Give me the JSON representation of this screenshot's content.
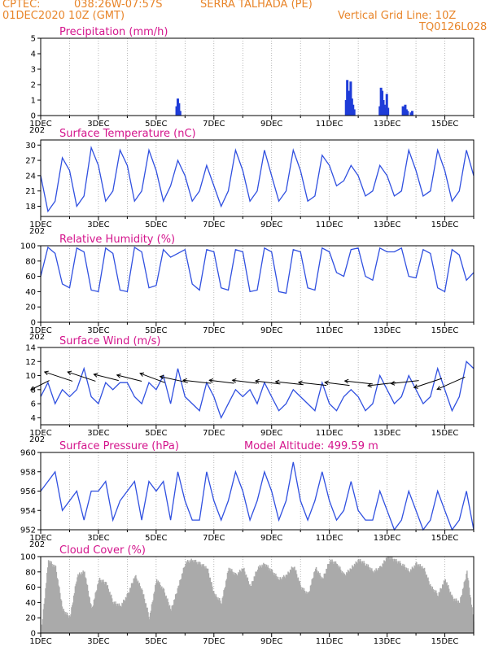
{
  "header": {
    "source": "CPTEC:",
    "coords": "038:26W-07:57S",
    "station": "SERRA TALHADA (PE)",
    "date": "01DEC2020 10Z (GMT)",
    "grid_line": "Vertical Grid Line: 10Z",
    "model": "TQ0126L028"
  },
  "x_axis": {
    "labels": [
      "1DEC",
      "3DEC",
      "5DEC",
      "7DEC",
      "9DEC",
      "11DEC",
      "13DEC",
      "15DEC"
    ],
    "label_days": [
      0,
      2,
      4,
      6,
      8,
      10,
      12,
      14
    ],
    "year_stub": "202",
    "days_span": 15
  },
  "colors": {
    "line": "#3050e0",
    "bars": "#1e3cd8",
    "cloud": "#aaaaaa",
    "title": "#d4148c",
    "header": "#e8852a",
    "grid": "#888888"
  },
  "chart_data": [
    {
      "id": "precip",
      "type": "bar",
      "title": "Precipitation (mm/h)",
      "ylim": [
        0,
        5
      ],
      "yticks": [
        0,
        1,
        2,
        3,
        4,
        5
      ],
      "points": [
        [
          4.71,
          0.6
        ],
        [
          4.75,
          1.1
        ],
        [
          4.79,
          0.8
        ],
        [
          4.83,
          0.3
        ],
        [
          10.58,
          1.0
        ],
        [
          10.62,
          2.3
        ],
        [
          10.66,
          1.6
        ],
        [
          10.7,
          0.5
        ],
        [
          10.74,
          2.2
        ],
        [
          10.78,
          1.1
        ],
        [
          10.82,
          0.7
        ],
        [
          10.86,
          0.4
        ],
        [
          11.75,
          0.6
        ],
        [
          11.79,
          1.8
        ],
        [
          11.83,
          1.6
        ],
        [
          11.87,
          1.0
        ],
        [
          11.91,
          0.7
        ],
        [
          11.95,
          0.5
        ],
        [
          11.99,
          1.4
        ],
        [
          12.03,
          0.5
        ],
        [
          12.55,
          0.6
        ],
        [
          12.59,
          0.4
        ],
        [
          12.63,
          0.7
        ],
        [
          12.67,
          0.4
        ],
        [
          12.71,
          0.3
        ],
        [
          12.83,
          0.2
        ],
        [
          12.87,
          0.3
        ]
      ]
    },
    {
      "id": "temp",
      "type": "line",
      "title": "Surface Temperature (nC)",
      "ylim": [
        16,
        31
      ],
      "yticks": [
        18,
        21,
        24,
        27,
        30
      ],
      "x": [
        0,
        0.25,
        0.5,
        0.75,
        1,
        1.25,
        1.5,
        1.75,
        2,
        2.25,
        2.5,
        2.75,
        3,
        3.25,
        3.5,
        3.75,
        4,
        4.25,
        4.5,
        4.75,
        5,
        5.25,
        5.5,
        5.75,
        6,
        6.25,
        6.5,
        6.75,
        7,
        7.25,
        7.5,
        7.75,
        8,
        8.25,
        8.5,
        8.75,
        9,
        9.25,
        9.5,
        9.75,
        10,
        10.25,
        10.5,
        10.75,
        11,
        11.25,
        11.5,
        11.75,
        12,
        12.25,
        12.5,
        12.75,
        13,
        13.25,
        13.5,
        13.75,
        14,
        14.25,
        14.5,
        14.75,
        15
      ],
      "y": [
        24,
        17,
        19,
        27.5,
        25,
        18,
        20,
        29.5,
        26,
        19,
        21,
        29,
        26,
        19,
        21,
        29,
        25,
        19,
        22,
        27,
        24,
        19,
        21,
        26,
        22,
        18,
        21,
        29,
        25,
        19,
        21,
        29,
        24,
        19,
        21,
        29,
        25,
        19,
        20,
        28,
        26,
        22,
        23,
        26,
        24,
        20,
        21,
        26,
        24,
        20,
        21,
        29,
        25,
        20,
        21,
        29,
        25,
        19,
        21,
        29,
        24
      ]
    },
    {
      "id": "rh",
      "type": "line",
      "title": "Relative Humidity (%)",
      "ylim": [
        0,
        100
      ],
      "yticks": [
        0,
        20,
        40,
        60,
        80,
        100
      ],
      "x": [
        0,
        0.25,
        0.5,
        0.75,
        1,
        1.25,
        1.5,
        1.75,
        2,
        2.25,
        2.5,
        2.75,
        3,
        3.25,
        3.5,
        3.75,
        4,
        4.25,
        4.5,
        4.75,
        5,
        5.25,
        5.5,
        5.75,
        6,
        6.25,
        6.5,
        6.75,
        7,
        7.25,
        7.5,
        7.75,
        8,
        8.25,
        8.5,
        8.75,
        9,
        9.25,
        9.5,
        9.75,
        10,
        10.25,
        10.5,
        10.75,
        11,
        11.25,
        11.5,
        11.75,
        12,
        12.25,
        12.5,
        12.75,
        13,
        13.25,
        13.5,
        13.75,
        14,
        14.25,
        14.5,
        14.75,
        15
      ],
      "y": [
        60,
        98,
        90,
        50,
        45,
        97,
        92,
        42,
        40,
        97,
        90,
        42,
        40,
        98,
        92,
        45,
        48,
        95,
        85,
        90,
        95,
        50,
        42,
        95,
        92,
        45,
        42,
        95,
        92,
        40,
        42,
        97,
        92,
        40,
        38,
        95,
        92,
        45,
        42,
        97,
        92,
        65,
        60,
        95,
        97,
        60,
        55,
        97,
        92,
        92,
        97,
        60,
        58,
        95,
        90,
        45,
        40,
        95,
        88,
        55,
        65
      ]
    },
    {
      "id": "wind",
      "type": "line",
      "title": "Surface Wind (m/s)",
      "ylim": [
        3,
        14
      ],
      "yticks": [
        4,
        6,
        8,
        10,
        12,
        14
      ],
      "x": [
        0,
        0.25,
        0.5,
        0.75,
        1,
        1.25,
        1.5,
        1.75,
        2,
        2.25,
        2.5,
        2.75,
        3,
        3.25,
        3.5,
        3.75,
        4,
        4.25,
        4.5,
        4.75,
        5,
        5.25,
        5.5,
        5.75,
        6,
        6.25,
        6.5,
        6.75,
        7,
        7.25,
        7.5,
        7.75,
        8,
        8.25,
        8.5,
        8.75,
        9,
        9.25,
        9.5,
        9.75,
        10,
        10.25,
        10.5,
        10.75,
        11,
        11.25,
        11.5,
        11.75,
        12,
        12.25,
        12.5,
        12.75,
        13,
        13.25,
        13.5,
        13.75,
        14,
        14.25,
        14.5,
        14.75,
        15
      ],
      "y": [
        7,
        9,
        6,
        8,
        7,
        8,
        11,
        7,
        6,
        9,
        8,
        9,
        9,
        7,
        6,
        9,
        8,
        10,
        6,
        11,
        7,
        6,
        5,
        9,
        7,
        4,
        6,
        8,
        7,
        8,
        6,
        9,
        7,
        5,
        6,
        8,
        7,
        6,
        5,
        9,
        6,
        5,
        7,
        8,
        7,
        5,
        6,
        10,
        8,
        6,
        7,
        10,
        8,
        6,
        7,
        11,
        8,
        5,
        7,
        12,
        11
      ],
      "arrows_x": [
        0.3,
        1.1,
        1.9,
        2.7,
        3.5,
        4.3,
        5.1,
        5.9,
        6.7,
        7.5,
        8.3,
        9.1,
        9.9,
        10.7,
        11.5,
        12.3,
        13.1,
        13.9,
        14.7
      ],
      "arrows_y": [
        9.3,
        9.2,
        9.2,
        9.3,
        9.2,
        9.0,
        9.0,
        8.9,
        8.9,
        8.9,
        8.8,
        8.7,
        8.6,
        8.6,
        8.8,
        9.0,
        9.3,
        9.6,
        9.8
      ],
      "arrows_u": [
        -0.6,
        -0.9,
        -0.9,
        -0.8,
        -0.8,
        -0.8,
        -0.9,
        -0.9,
        -0.8,
        -0.8,
        -0.8,
        -0.9,
        -0.9,
        -0.8,
        -0.9,
        -0.9,
        -0.9,
        -0.9,
        -0.9
      ],
      "arrows_v": [
        -0.3,
        0.3,
        0.3,
        0.2,
        0.2,
        0.3,
        0.2,
        0.1,
        0.1,
        0.1,
        0.1,
        0.1,
        0.1,
        0.1,
        0.1,
        -0.1,
        -0.1,
        -0.3,
        -0.4
      ]
    },
    {
      "id": "pressure",
      "type": "line",
      "title": "Surface Pressure (hPa)",
      "extra": "Model Altitude: 499.59 m",
      "ylim": [
        952,
        960
      ],
      "yticks": [
        952,
        954,
        956,
        958,
        960
      ],
      "x": [
        0,
        0.25,
        0.5,
        0.75,
        1,
        1.25,
        1.5,
        1.75,
        2,
        2.25,
        2.5,
        2.75,
        3,
        3.25,
        3.5,
        3.75,
        4,
        4.25,
        4.5,
        4.75,
        5,
        5.25,
        5.5,
        5.75,
        6,
        6.25,
        6.5,
        6.75,
        7,
        7.25,
        7.5,
        7.75,
        8,
        8.25,
        8.5,
        8.75,
        9,
        9.25,
        9.5,
        9.75,
        10,
        10.25,
        10.5,
        10.75,
        11,
        11.25,
        11.5,
        11.75,
        12,
        12.25,
        12.5,
        12.75,
        13,
        13.25,
        13.5,
        13.75,
        14,
        14.25,
        14.5,
        14.75,
        15
      ],
      "y": [
        956,
        957,
        958,
        954,
        955,
        956,
        953,
        956,
        956,
        957,
        953,
        955,
        956,
        957,
        953,
        957,
        956,
        957,
        953,
        958,
        955,
        953,
        953,
        958,
        955,
        953,
        955,
        958,
        956,
        953,
        955,
        958,
        956,
        953,
        955,
        959,
        955,
        953,
        955,
        958,
        955,
        953,
        954,
        957,
        954,
        953,
        953,
        956,
        954,
        952,
        953,
        956,
        954,
        952,
        953,
        956,
        954,
        952,
        953,
        956,
        952
      ]
    },
    {
      "id": "cloud",
      "type": "area",
      "title": "Cloud Cover (%)",
      "ylim": [
        0,
        100
      ],
      "yticks": [
        0,
        20,
        40,
        60,
        80,
        100
      ],
      "x": [
        0,
        0.25,
        0.5,
        0.75,
        1,
        1.25,
        1.5,
        1.75,
        2,
        2.25,
        2.5,
        2.75,
        3,
        3.25,
        3.5,
        3.75,
        4,
        4.25,
        4.5,
        4.75,
        5,
        5.25,
        5.5,
        5.75,
        6,
        6.25,
        6.5,
        6.75,
        7,
        7.25,
        7.5,
        7.75,
        8,
        8.25,
        8.5,
        8.75,
        9,
        9.25,
        9.5,
        9.75,
        10,
        10.25,
        10.5,
        10.75,
        11,
        11.25,
        11.5,
        11.75,
        12,
        12.25,
        12.5,
        12.75,
        13,
        13.25,
        13.5,
        13.75,
        14,
        14.25,
        14.5,
        14.75,
        15
      ],
      "y": [
        0,
        95,
        85,
        30,
        20,
        75,
        80,
        30,
        70,
        65,
        40,
        35,
        50,
        75,
        55,
        20,
        70,
        55,
        30,
        60,
        92,
        95,
        90,
        85,
        50,
        40,
        85,
        75,
        85,
        60,
        85,
        90,
        80,
        70,
        75,
        88,
        60,
        50,
        85,
        70,
        95,
        90,
        75,
        85,
        95,
        90,
        80,
        85,
        100,
        95,
        90,
        80,
        90,
        85,
        60,
        50,
        70,
        45,
        40,
        80,
        10
      ]
    }
  ]
}
